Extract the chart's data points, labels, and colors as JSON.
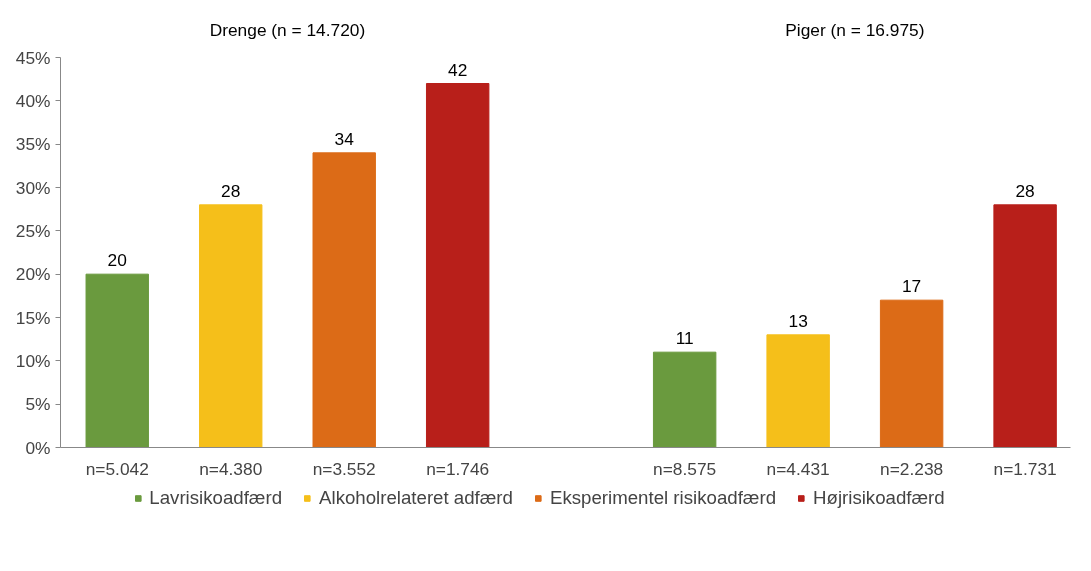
{
  "chart_data": {
    "type": "bar",
    "categories": [
      "n=5.042",
      "n=4.380",
      "n=3.552",
      "n=1.746",
      null,
      "n=8.575",
      "n=4.431",
      "n=2.238",
      "n=1.731"
    ],
    "series": [
      {
        "name": "Lavrisikoadfærd",
        "color": "#6a9a3e",
        "values": [
          20,
          null,
          null,
          null,
          null,
          11,
          null,
          null,
          null
        ]
      },
      {
        "name": "Alkoholrelateret adfærd",
        "color": "#f5bf1a",
        "values": [
          null,
          28,
          null,
          null,
          null,
          null,
          13,
          null,
          null
        ]
      },
      {
        "name": "Eksperimentel risikoadfærd",
        "color": "#dc6b17",
        "values": [
          null,
          null,
          34,
          null,
          null,
          null,
          null,
          17,
          null
        ]
      },
      {
        "name": "Højrisikoadfærd",
        "color": "#b81f1a",
        "values": [
          null,
          null,
          null,
          42,
          null,
          null,
          null,
          null,
          28
        ]
      }
    ],
    "annotations": [
      "Drenge (n = 14.720)",
      "Piger (n = 16.975)"
    ],
    "ylim": [
      0,
      45
    ],
    "yticks": [
      {
        "value": 0,
        "label": "0%"
      },
      {
        "value": 5,
        "label": "5%"
      },
      {
        "value": 10,
        "label": "10%"
      },
      {
        "value": 15,
        "label": "15%"
      },
      {
        "value": 20,
        "label": "20%"
      },
      {
        "value": 25,
        "label": "25%"
      },
      {
        "value": 30,
        "label": "30%"
      },
      {
        "value": 35,
        "label": "35%"
      },
      {
        "value": 40,
        "label": "40%"
      },
      {
        "value": 45,
        "label": "45%"
      }
    ],
    "data_labels": true,
    "grid": false,
    "legend": "bottom"
  }
}
